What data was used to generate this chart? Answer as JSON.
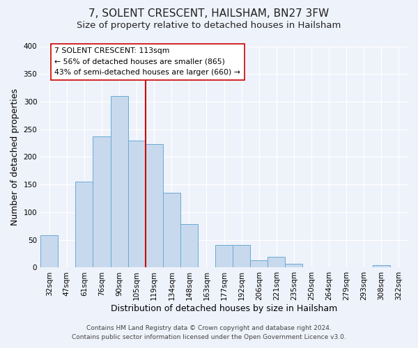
{
  "title": "7, SOLENT CRESCENT, HAILSHAM, BN27 3FW",
  "subtitle": "Size of property relative to detached houses in Hailsham",
  "xlabel": "Distribution of detached houses by size in Hailsham",
  "ylabel": "Number of detached properties",
  "categories": [
    "32sqm",
    "47sqm",
    "61sqm",
    "76sqm",
    "90sqm",
    "105sqm",
    "119sqm",
    "134sqm",
    "148sqm",
    "163sqm",
    "177sqm",
    "192sqm",
    "206sqm",
    "221sqm",
    "235sqm",
    "250sqm",
    "264sqm",
    "279sqm",
    "293sqm",
    "308sqm",
    "322sqm"
  ],
  "values": [
    58,
    0,
    155,
    237,
    310,
    230,
    223,
    135,
    78,
    0,
    41,
    41,
    13,
    20,
    7,
    0,
    0,
    0,
    0,
    4,
    0
  ],
  "bar_color": "#c8d9ee",
  "bar_edge_color": "#6aaad4",
  "marker_line_color": "#cc0000",
  "annotation_text_line1": "7 SOLENT CRESCENT: 113sqm",
  "annotation_text_line2": "← 56% of detached houses are smaller (865)",
  "annotation_text_line3": "43% of semi-detached houses are larger (660) →",
  "annotation_box_color": "#ffffff",
  "annotation_box_edge_color": "#cc0000",
  "ylim": [
    0,
    400
  ],
  "yticks": [
    0,
    50,
    100,
    150,
    200,
    250,
    300,
    350,
    400
  ],
  "footer_line1": "Contains HM Land Registry data © Crown copyright and database right 2024.",
  "footer_line2": "Contains public sector information licensed under the Open Government Licence v3.0.",
  "bg_color": "#eef2fa",
  "plot_bg_color": "#eef2fa",
  "grid_color": "#ffffff",
  "title_fontsize": 11,
  "subtitle_fontsize": 9.5,
  "axis_label_fontsize": 9,
  "tick_fontsize": 7.5,
  "footer_fontsize": 6.5
}
